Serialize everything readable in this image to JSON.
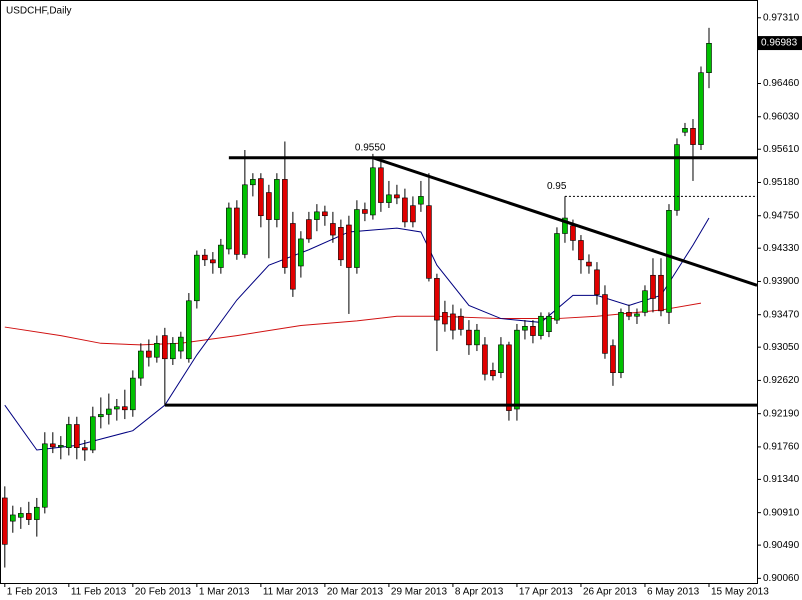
{
  "chart_data": {
    "type": "candlestick",
    "title": "USDCHF,Daily",
    "xlim": [
      -0.6,
      94
    ],
    "ylim": [
      0.9,
      0.9754
    ],
    "xticks": [
      {
        "value": 0,
        "label": "1 Feb 2013"
      },
      {
        "value": 8,
        "label": "11 Feb 2013"
      },
      {
        "value": 16,
        "label": "20 Feb 2013"
      },
      {
        "value": 24,
        "label": "1 Mar 2013"
      },
      {
        "value": 32,
        "label": "11 Mar 2013"
      },
      {
        "value": 40,
        "label": "20 Mar 2013"
      },
      {
        "value": 48,
        "label": "29 Mar 2013"
      },
      {
        "value": 56,
        "label": "8 Apr 2013"
      },
      {
        "value": 64,
        "label": "17 Apr 2013"
      },
      {
        "value": 72,
        "label": "26 Apr 2013"
      },
      {
        "value": 80,
        "label": "6 May 2013"
      },
      {
        "value": 88,
        "label": "15 May 2013"
      }
    ],
    "yticks": [
      {
        "value": 0.9731,
        "label": "0.97310"
      },
      {
        "value": 0.9646,
        "label": "0.96460"
      },
      {
        "value": 0.9603,
        "label": "0.96030"
      },
      {
        "value": 0.9561,
        "label": "0.95610"
      },
      {
        "value": 0.9518,
        "label": "0.95180"
      },
      {
        "value": 0.9475,
        "label": "0.94750"
      },
      {
        "value": 0.9433,
        "label": "0.94330"
      },
      {
        "value": 0.939,
        "label": "0.93900"
      },
      {
        "value": 0.9347,
        "label": "0.93470"
      },
      {
        "value": 0.9305,
        "label": "0.93050"
      },
      {
        "value": 0.9262,
        "label": "0.92620"
      },
      {
        "value": 0.9219,
        "label": "0.92190"
      },
      {
        "value": 0.9176,
        "label": "0.91760"
      },
      {
        "value": 0.9134,
        "label": "0.91340"
      },
      {
        "value": 0.9091,
        "label": "0.90910"
      },
      {
        "value": 0.9049,
        "label": "0.90490"
      },
      {
        "value": 0.9006,
        "label": "0.90060"
      }
    ],
    "up_color": "#00c000",
    "down_color": "#e00000",
    "open": [
      0.911,
      0.908,
      0.9085,
      0.909,
      0.9082,
      0.9098,
      0.918,
      0.9176,
      0.9175,
      0.9205,
      0.9175,
      0.9172,
      0.9215,
      0.9218,
      0.9225,
      0.9228,
      0.9224,
      0.9265,
      0.93,
      0.9292,
      0.932,
      0.929,
      0.93,
      0.929,
      0.9365,
      0.9424,
      0.9418,
      0.9408,
      0.9432,
      0.9485,
      0.9425,
      0.9515,
      0.9523,
      0.9505,
      0.947,
      0.9522,
      0.9465,
      0.941,
      0.947,
      0.947,
      0.948,
      0.9465,
      0.946,
      0.9463,
      0.9408,
      0.9483,
      0.9476,
      0.9537,
      0.9492,
      0.9502,
      0.9498,
      0.9488,
      0.949,
      0.9488,
      0.9394,
      0.935,
      0.9348,
      0.9345,
      0.9327,
      0.9308,
      0.9308,
      0.9275,
      0.9272,
      0.9308,
      0.9225,
      0.9327,
      0.9332,
      0.932,
      0.9325,
      0.934,
      0.9452,
      0.9462,
      0.9443,
      0.9415,
      0.9405,
      0.9373,
      0.9307,
      0.9272,
      0.935,
      0.9345,
      0.935,
      0.9398,
      0.9398,
      0.935,
      0.9482,
      0.9583,
      0.9588,
      0.9567,
      0.966
    ],
    "high": [
      0.9125,
      0.91,
      0.9098,
      0.9105,
      0.911,
      0.9195,
      0.9195,
      0.919,
      0.9215,
      0.9215,
      0.9185,
      0.9228,
      0.924,
      0.9245,
      0.9238,
      0.925,
      0.9275,
      0.931,
      0.9315,
      0.932,
      0.933,
      0.9318,
      0.9325,
      0.9375,
      0.943,
      0.9432,
      0.9428,
      0.9445,
      0.9492,
      0.9495,
      0.956,
      0.953,
      0.953,
      0.9515,
      0.953,
      0.9571,
      0.948,
      0.9455,
      0.948,
      0.949,
      0.9488,
      0.948,
      0.947,
      0.9475,
      0.9495,
      0.9492,
      0.9555,
      0.9545,
      0.952,
      0.9515,
      0.951,
      0.95,
      0.952,
      0.953,
      0.94,
      0.9365,
      0.936,
      0.9355,
      0.934,
      0.9335,
      0.9318,
      0.9285,
      0.9318,
      0.9312,
      0.9335,
      0.934,
      0.934,
      0.935,
      0.935,
      0.946,
      0.95,
      0.947,
      0.945,
      0.9425,
      0.9415,
      0.9385,
      0.9315,
      0.9355,
      0.936,
      0.9355,
      0.9385,
      0.942,
      0.942,
      0.949,
      0.9575,
      0.9595,
      0.96,
      0.9668,
      0.9718
    ],
    "low": [
      0.902,
      0.9065,
      0.907,
      0.9075,
      0.906,
      0.909,
      0.9168,
      0.916,
      0.9165,
      0.916,
      0.9158,
      0.9168,
      0.92,
      0.9205,
      0.921,
      0.9212,
      0.9215,
      0.9255,
      0.928,
      0.9285,
      0.923,
      0.9282,
      0.929,
      0.9285,
      0.9355,
      0.941,
      0.94,
      0.94,
      0.9425,
      0.9418,
      0.942,
      0.95,
      0.946,
      0.942,
      0.946,
      0.94,
      0.937,
      0.9395,
      0.944,
      0.9455,
      0.9462,
      0.944,
      0.941,
      0.9348,
      0.94,
      0.9468,
      0.947,
      0.948,
      0.9485,
      0.949,
      0.946,
      0.946,
      0.948,
      0.939,
      0.93,
      0.9325,
      0.9315,
      0.932,
      0.9295,
      0.93,
      0.9262,
      0.9262,
      0.9265,
      0.921,
      0.921,
      0.9315,
      0.931,
      0.9315,
      0.9318,
      0.9335,
      0.944,
      0.943,
      0.94,
      0.94,
      0.936,
      0.929,
      0.9255,
      0.9265,
      0.934,
      0.9335,
      0.9345,
      0.935,
      0.9345,
      0.9335,
      0.9475,
      0.9578,
      0.952,
      0.956,
      0.964
    ],
    "close": [
      0.905,
      0.9088,
      0.909,
      0.9082,
      0.9098,
      0.918,
      0.9176,
      0.9178,
      0.9205,
      0.9175,
      0.9172,
      0.9215,
      0.9218,
      0.9225,
      0.9228,
      0.9224,
      0.9265,
      0.93,
      0.9292,
      0.931,
      0.929,
      0.931,
      0.9318,
      0.9365,
      0.9424,
      0.9418,
      0.9414,
      0.9437,
      0.9485,
      0.9425,
      0.9515,
      0.9522,
      0.9475,
      0.947,
      0.9522,
      0.9408,
      0.938,
      0.9445,
      0.9445,
      0.948,
      0.9475,
      0.945,
      0.9418,
      0.9408,
      0.9483,
      0.9478,
      0.9537,
      0.9492,
      0.9502,
      0.9498,
      0.9467,
      0.9467,
      0.95,
      0.9394,
      0.934,
      0.9335,
      0.9327,
      0.9328,
      0.9308,
      0.9327,
      0.927,
      0.9268,
      0.9308,
      0.9223,
      0.9327,
      0.9332,
      0.932,
      0.9345,
      0.9345,
      0.9452,
      0.9472,
      0.9443,
      0.9418,
      0.941,
      0.9373,
      0.9297,
      0.9272,
      0.935,
      0.9345,
      0.9348,
      0.9378,
      0.9368,
      0.9352,
      0.9482,
      0.9567,
      0.9588,
      0.9567,
      0.966,
      0.9698
    ],
    "series": [
      {
        "color": "#d01010",
        "x": [
          0,
          7,
          12,
          17,
          22,
          29,
          37,
          44,
          49,
          54,
          62,
          69,
          74,
          82,
          87
        ],
        "values": [
          0.9331,
          0.932,
          0.931,
          0.9308,
          0.931,
          0.932,
          0.9333,
          0.9339,
          0.9345,
          0.9345,
          0.9342,
          0.9342,
          0.9345,
          0.9353,
          0.9362
        ]
      },
      {
        "color": "#000080",
        "x": [
          0,
          4,
          9,
          16,
          20,
          24,
          29,
          33,
          38,
          43,
          49,
          52,
          54,
          58,
          62,
          67,
          71,
          74,
          78,
          82,
          86,
          88
        ],
        "values": [
          0.923,
          0.9172,
          0.9178,
          0.9197,
          0.923,
          0.9295,
          0.9366,
          0.9411,
          0.9431,
          0.9454,
          0.9459,
          0.9454,
          0.9411,
          0.9359,
          0.9342,
          0.9337,
          0.9372,
          0.9372,
          0.9359,
          0.9372,
          0.9437,
          0.9472
        ]
      }
    ],
    "lines": [
      {
        "x": [
          28,
          94
        ],
        "values": [
          0.955,
          0.955
        ],
        "width": 3,
        "dashed": false
      },
      {
        "x": [
          20,
          94
        ],
        "values": [
          0.923,
          0.923
        ],
        "width": 3,
        "dashed": false
      },
      {
        "x": [
          46,
          94
        ],
        "values": [
          0.955,
          0.9385
        ],
        "width": 3,
        "dashed": false
      },
      {
        "x": [
          70,
          94
        ],
        "values": [
          0.95,
          0.95
        ],
        "width": 1,
        "dashed": true
      }
    ],
    "annotations": [
      {
        "text": "0.9550",
        "x": 46,
        "y": 0.955
      },
      {
        "text": "0.95",
        "x": 70,
        "y": 0.95
      }
    ],
    "current_price": 0.96983
  }
}
